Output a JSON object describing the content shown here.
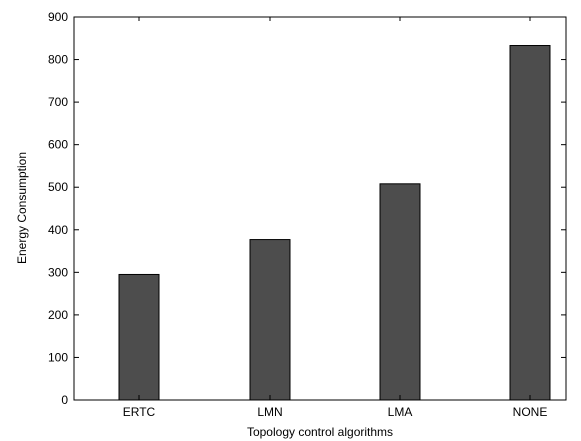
{
  "chart_data": {
    "type": "bar",
    "title": "",
    "xlabel": "Topology control algorithms",
    "ylabel": "Energy Consumption",
    "categories": [
      "ERTC",
      "LMN",
      "LMA",
      "NONE"
    ],
    "values": [
      295,
      377,
      508,
      833
    ],
    "ylim": [
      0,
      900
    ],
    "yticks": [
      0,
      100,
      200,
      300,
      400,
      500,
      600,
      700,
      800,
      900
    ],
    "grid": false,
    "legend": "none",
    "bar_color": "#4d4d4d"
  }
}
